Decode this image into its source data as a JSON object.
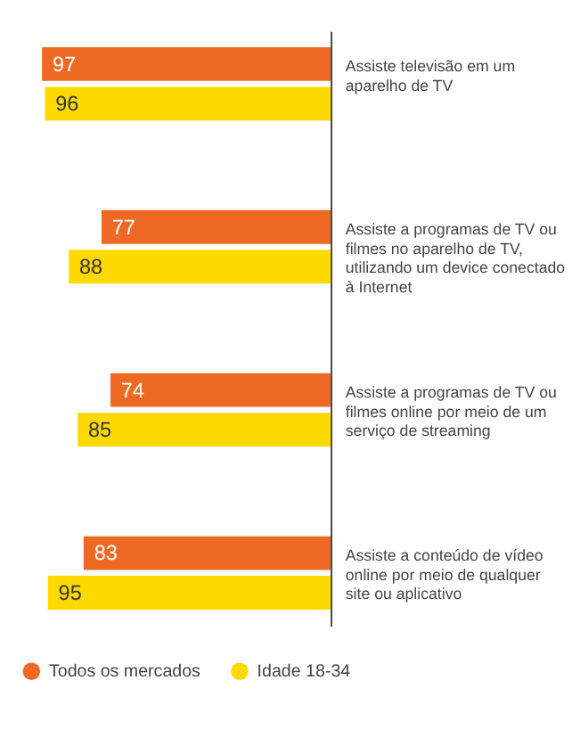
{
  "chart_data": {
    "type": "bar",
    "orientation": "horizontal",
    "data_labels": true,
    "legend": "bottom left",
    "grid": false,
    "tick_labels": "y",
    "categories": [
      "Assiste televisão em um aparelho de TV",
      "Assiste a programas de TV ou filmes no aparelho de TV, utilizando um device conectado à Internet",
      "Assiste a programas de TV ou filmes online por meio de um serviço de streaming",
      "Assiste a conteúdo de vídeo online por meio de qualquer site ou aplicativo"
    ],
    "series": [
      {
        "name": "Todos os mercados",
        "color": "#ee6a24",
        "values": [
          97,
          77,
          74,
          83
        ]
      },
      {
        "name": "Idade 18-34",
        "color": "#fdd900",
        "values": [
          96,
          88,
          85,
          95
        ]
      }
    ]
  }
}
